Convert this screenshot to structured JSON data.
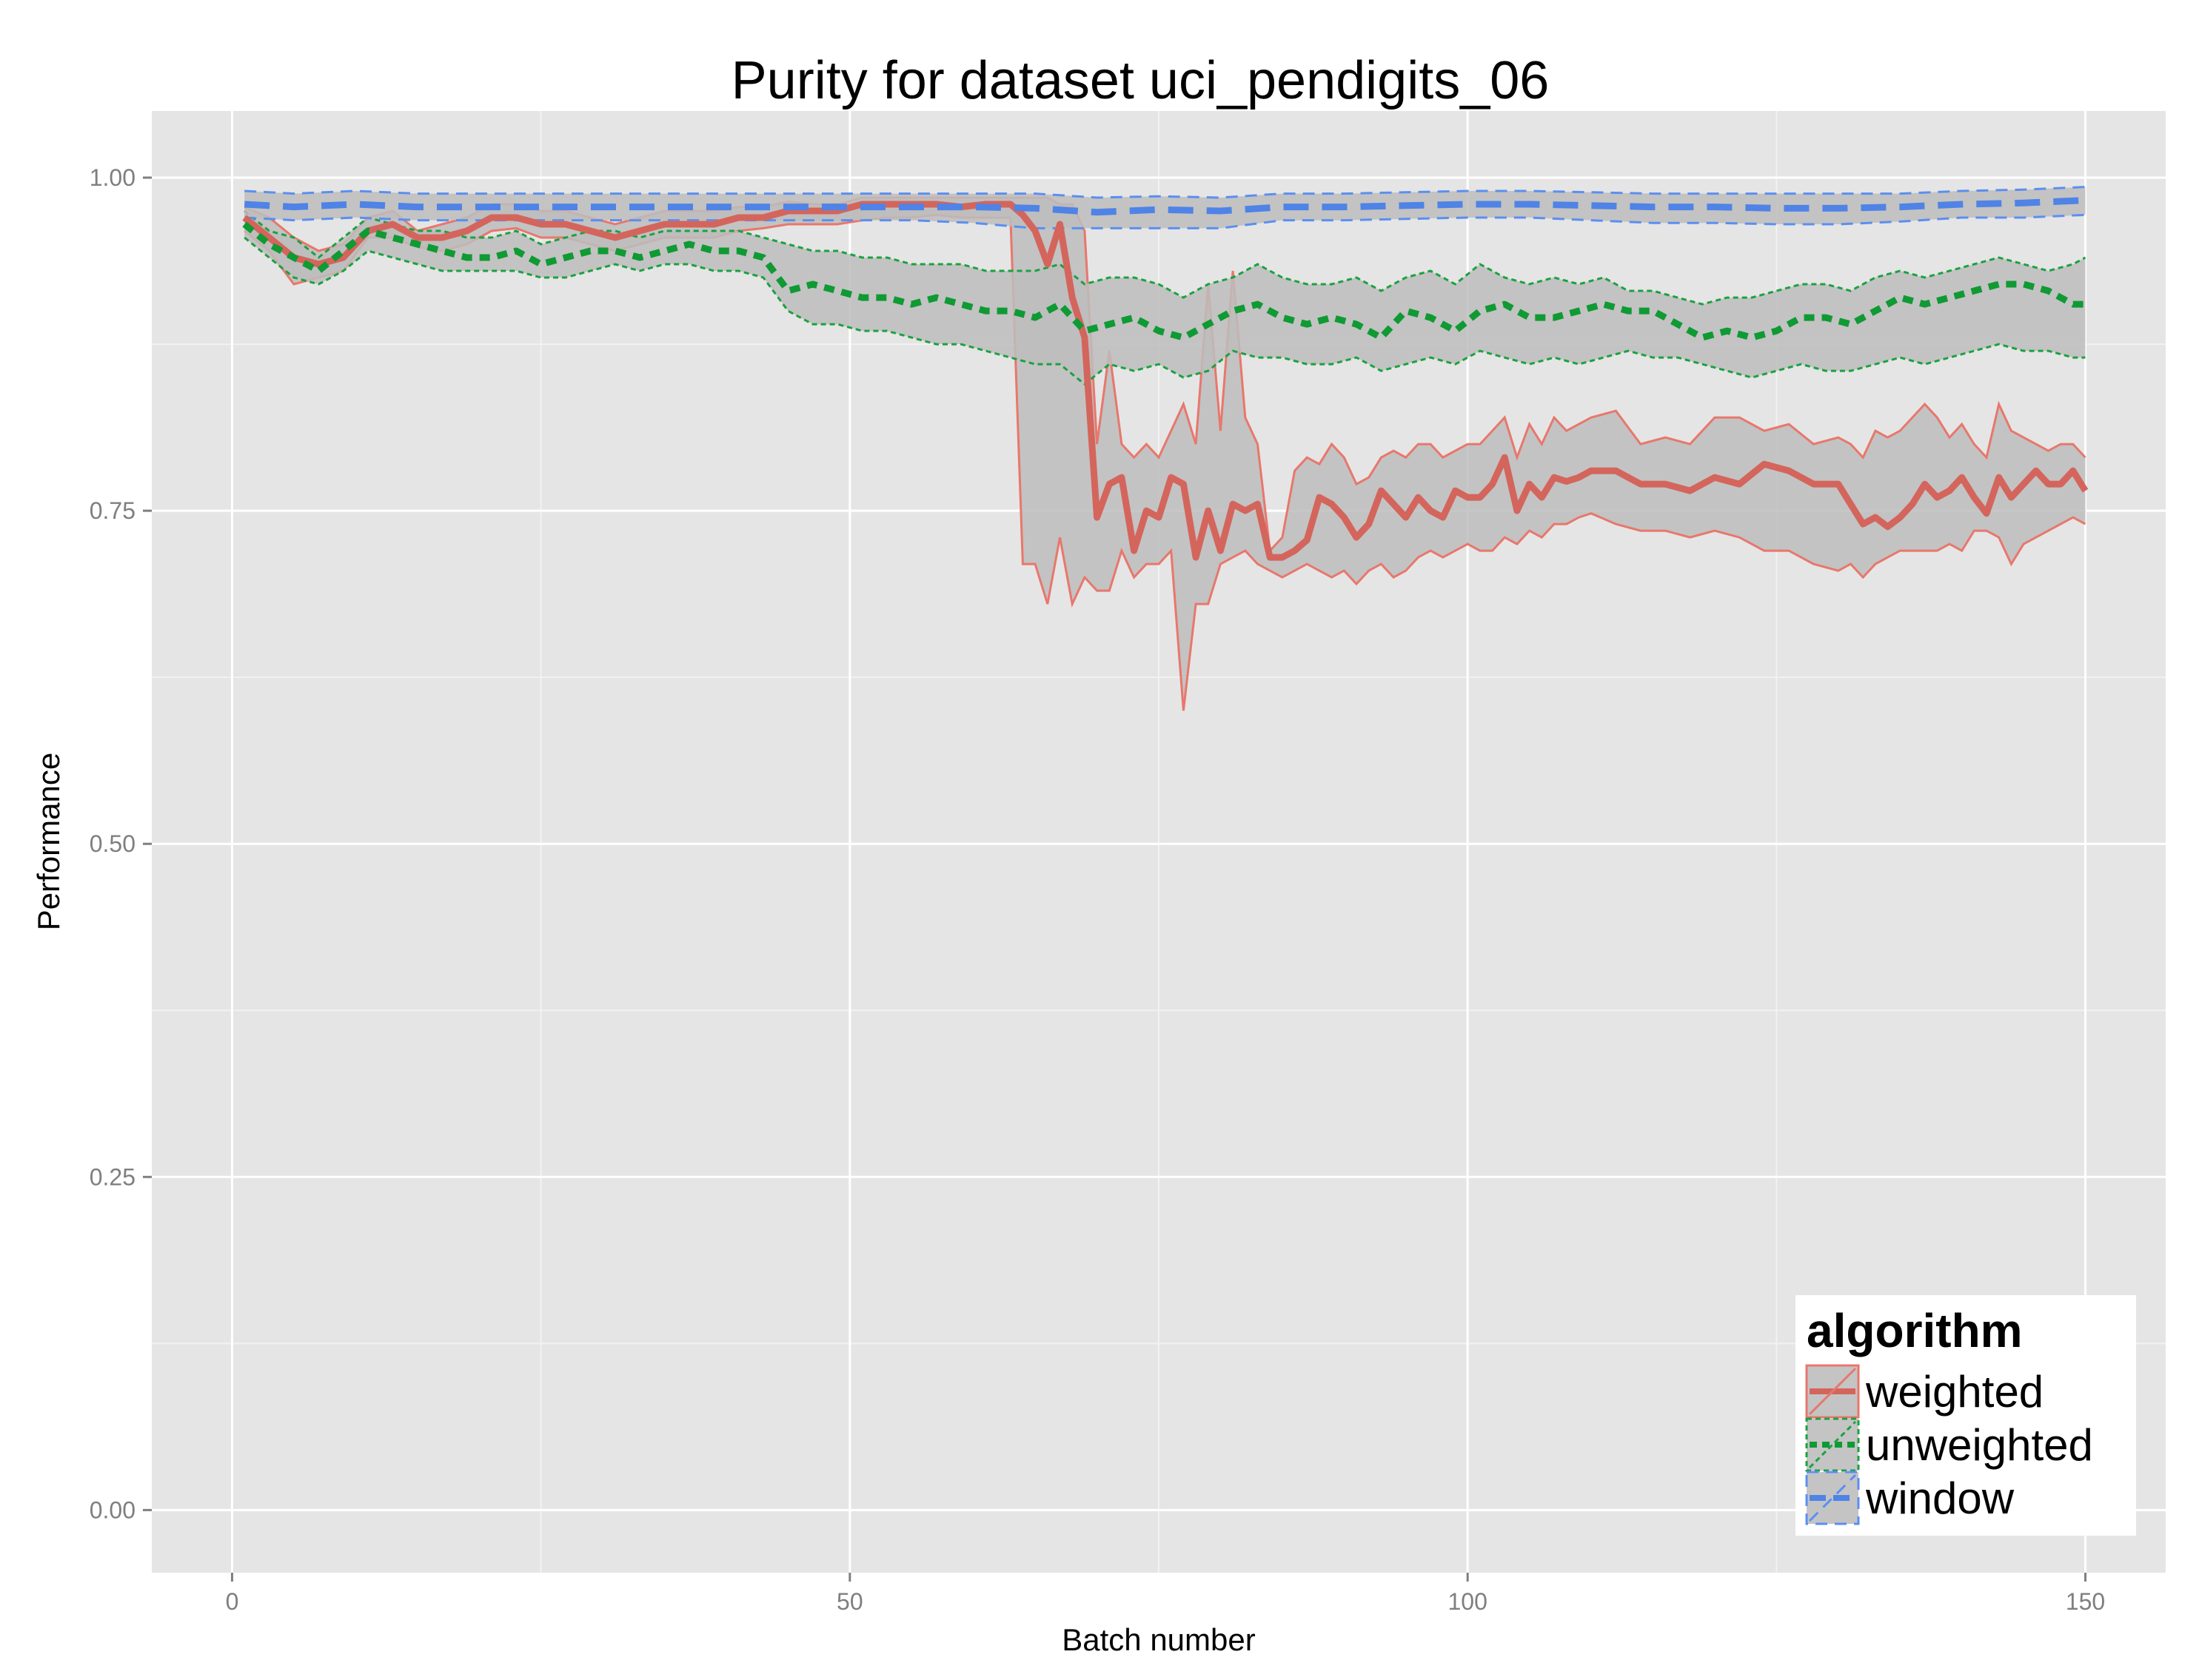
{
  "chart_data": {
    "type": "line",
    "title": "Purity for dataset uci_pendigits_06",
    "xlabel": "Batch number",
    "ylabel": "Performance",
    "xlim": [
      -6.5,
      156.5
    ],
    "ylim": [
      -0.047,
      1.05
    ],
    "x_ticks": [
      0,
      50,
      100,
      150
    ],
    "x_tick_labels": [
      "0",
      "50",
      "100",
      "150"
    ],
    "y_ticks": [
      0,
      0.25,
      0.5,
      0.75,
      1.0
    ],
    "y_tick_labels": [
      "0.00",
      "0.25",
      "0.50",
      "0.75",
      "1.00"
    ],
    "grid": true,
    "background": "#e5e5e5",
    "band_fill": "#bdbdbd",
    "legend": {
      "title": "algorithm",
      "position": "bottom-right",
      "entries": [
        "weighted",
        "unweighted",
        "window"
      ]
    },
    "series": [
      {
        "name": "weighted",
        "color": "#e8776c",
        "line_color": "#d4655c",
        "dash": "solid",
        "x": [
          1,
          3,
          5,
          7,
          9,
          11,
          13,
          15,
          17,
          19,
          21,
          23,
          25,
          27,
          29,
          31,
          33,
          35,
          37,
          39,
          41,
          43,
          45,
          47,
          49,
          51,
          53,
          55,
          57,
          59,
          61,
          63,
          64,
          65,
          66,
          67,
          68,
          69,
          70,
          71,
          72,
          73,
          74,
          75,
          76,
          77,
          78,
          79,
          80,
          81,
          82,
          83,
          84,
          85,
          86,
          87,
          88,
          89,
          90,
          91,
          92,
          93,
          94,
          95,
          96,
          97,
          98,
          99,
          100,
          101,
          102,
          103,
          104,
          105,
          106,
          107,
          108,
          109,
          110,
          112,
          114,
          116,
          118,
          120,
          122,
          124,
          126,
          128,
          130,
          131,
          132,
          133,
          134,
          135,
          136,
          137,
          138,
          139,
          140,
          141,
          142,
          143,
          144,
          145,
          146,
          147,
          148,
          149,
          150
        ],
        "y": [
          0.97,
          0.955,
          0.94,
          0.935,
          0.94,
          0.96,
          0.965,
          0.955,
          0.955,
          0.96,
          0.97,
          0.97,
          0.965,
          0.965,
          0.96,
          0.955,
          0.96,
          0.965,
          0.965,
          0.965,
          0.97,
          0.97,
          0.975,
          0.975,
          0.975,
          0.98,
          0.98,
          0.98,
          0.98,
          0.978,
          0.98,
          0.98,
          0.972,
          0.96,
          0.935,
          0.965,
          0.91,
          0.88,
          0.745,
          0.77,
          0.775,
          0.72,
          0.75,
          0.745,
          0.775,
          0.77,
          0.715,
          0.75,
          0.72,
          0.755,
          0.75,
          0.755,
          0.715,
          0.715,
          0.72,
          0.728,
          0.76,
          0.755,
          0.745,
          0.73,
          0.74,
          0.765,
          0.755,
          0.745,
          0.76,
          0.75,
          0.745,
          0.765,
          0.76,
          0.76,
          0.77,
          0.79,
          0.75,
          0.77,
          0.76,
          0.775,
          0.772,
          0.775,
          0.78,
          0.78,
          0.77,
          0.77,
          0.765,
          0.775,
          0.77,
          0.785,
          0.78,
          0.77,
          0.77,
          0.755,
          0.74,
          0.745,
          0.738,
          0.745,
          0.755,
          0.77,
          0.76,
          0.765,
          0.775,
          0.76,
          0.748,
          0.775,
          0.76,
          0.77,
          0.78,
          0.77,
          0.77,
          0.78,
          0.765
        ],
        "lower": [
          0.96,
          0.945,
          0.92,
          0.925,
          0.93,
          0.955,
          0.955,
          0.948,
          0.945,
          0.95,
          0.96,
          0.962,
          0.955,
          0.955,
          0.95,
          0.945,
          0.95,
          0.955,
          0.955,
          0.955,
          0.96,
          0.962,
          0.965,
          0.965,
          0.965,
          0.968,
          0.97,
          0.97,
          0.972,
          0.97,
          0.97,
          0.97,
          0.71,
          0.71,
          0.68,
          0.73,
          0.68,
          0.7,
          0.69,
          0.69,
          0.72,
          0.7,
          0.71,
          0.71,
          0.72,
          0.6,
          0.68,
          0.68,
          0.71,
          0.715,
          0.72,
          0.71,
          0.705,
          0.7,
          0.705,
          0.71,
          0.705,
          0.7,
          0.705,
          0.695,
          0.705,
          0.71,
          0.7,
          0.705,
          0.715,
          0.72,
          0.715,
          0.72,
          0.725,
          0.72,
          0.72,
          0.73,
          0.725,
          0.735,
          0.73,
          0.74,
          0.74,
          0.745,
          0.748,
          0.74,
          0.735,
          0.735,
          0.73,
          0.735,
          0.73,
          0.72,
          0.72,
          0.71,
          0.705,
          0.71,
          0.7,
          0.71,
          0.715,
          0.72,
          0.72,
          0.72,
          0.72,
          0.725,
          0.72,
          0.735,
          0.735,
          0.73,
          0.71,
          0.725,
          0.73,
          0.735,
          0.74,
          0.745,
          0.74
        ],
        "upper": [
          0.978,
          0.97,
          0.955,
          0.945,
          0.95,
          0.97,
          0.975,
          0.96,
          0.965,
          0.97,
          0.98,
          0.98,
          0.975,
          0.975,
          0.97,
          0.965,
          0.97,
          0.975,
          0.975,
          0.975,
          0.978,
          0.978,
          0.982,
          0.98,
          0.98,
          0.985,
          0.985,
          0.985,
          0.985,
          0.985,
          0.985,
          0.985,
          0.985,
          0.985,
          0.985,
          0.98,
          0.98,
          0.96,
          0.8,
          0.87,
          0.8,
          0.79,
          0.8,
          0.79,
          0.81,
          0.83,
          0.8,
          0.92,
          0.81,
          0.93,
          0.82,
          0.8,
          0.72,
          0.73,
          0.78,
          0.79,
          0.785,
          0.8,
          0.79,
          0.77,
          0.775,
          0.79,
          0.795,
          0.79,
          0.8,
          0.8,
          0.79,
          0.795,
          0.8,
          0.8,
          0.81,
          0.82,
          0.79,
          0.815,
          0.8,
          0.82,
          0.81,
          0.815,
          0.82,
          0.825,
          0.8,
          0.805,
          0.8,
          0.82,
          0.82,
          0.81,
          0.815,
          0.8,
          0.805,
          0.8,
          0.79,
          0.81,
          0.805,
          0.81,
          0.82,
          0.83,
          0.82,
          0.805,
          0.815,
          0.8,
          0.79,
          0.83,
          0.81,
          0.805,
          0.8,
          0.795,
          0.8,
          0.8,
          0.79
        ]
      },
      {
        "name": "unweighted",
        "color": "#1aa23f",
        "line_color": "#0f9a33",
        "dash": "dotted",
        "x": [
          1,
          3,
          5,
          7,
          9,
          11,
          13,
          15,
          17,
          19,
          21,
          23,
          25,
          27,
          29,
          31,
          33,
          35,
          37,
          39,
          41,
          43,
          45,
          47,
          49,
          51,
          53,
          55,
          57,
          59,
          61,
          63,
          65,
          67,
          69,
          71,
          73,
          75,
          77,
          79,
          81,
          83,
          85,
          87,
          89,
          91,
          93,
          95,
          97,
          99,
          101,
          103,
          105,
          107,
          109,
          111,
          113,
          115,
          117,
          119,
          121,
          123,
          125,
          127,
          129,
          131,
          133,
          135,
          137,
          139,
          141,
          143,
          145,
          147,
          149,
          150
        ],
        "y": [
          0.965,
          0.95,
          0.94,
          0.93,
          0.945,
          0.96,
          0.955,
          0.95,
          0.945,
          0.94,
          0.94,
          0.945,
          0.935,
          0.94,
          0.945,
          0.945,
          0.94,
          0.945,
          0.95,
          0.945,
          0.945,
          0.94,
          0.915,
          0.92,
          0.915,
          0.91,
          0.91,
          0.905,
          0.91,
          0.905,
          0.9,
          0.9,
          0.895,
          0.905,
          0.885,
          0.89,
          0.895,
          0.885,
          0.88,
          0.89,
          0.9,
          0.905,
          0.895,
          0.89,
          0.895,
          0.89,
          0.88,
          0.9,
          0.895,
          0.885,
          0.9,
          0.905,
          0.895,
          0.895,
          0.9,
          0.905,
          0.9,
          0.9,
          0.89,
          0.88,
          0.885,
          0.88,
          0.885,
          0.895,
          0.895,
          0.89,
          0.9,
          0.91,
          0.905,
          0.91,
          0.915,
          0.92,
          0.92,
          0.915,
          0.905,
          0.905
        ],
        "lower": [
          0.955,
          0.94,
          0.925,
          0.92,
          0.93,
          0.945,
          0.94,
          0.935,
          0.93,
          0.93,
          0.93,
          0.93,
          0.925,
          0.925,
          0.93,
          0.935,
          0.93,
          0.935,
          0.935,
          0.93,
          0.93,
          0.925,
          0.9,
          0.89,
          0.89,
          0.885,
          0.885,
          0.88,
          0.875,
          0.875,
          0.87,
          0.865,
          0.86,
          0.86,
          0.845,
          0.86,
          0.855,
          0.86,
          0.85,
          0.855,
          0.87,
          0.865,
          0.865,
          0.86,
          0.86,
          0.865,
          0.855,
          0.86,
          0.865,
          0.86,
          0.87,
          0.865,
          0.86,
          0.865,
          0.86,
          0.865,
          0.87,
          0.865,
          0.865,
          0.86,
          0.855,
          0.85,
          0.855,
          0.86,
          0.855,
          0.855,
          0.86,
          0.865,
          0.86,
          0.865,
          0.87,
          0.875,
          0.87,
          0.87,
          0.865,
          0.865
        ],
        "upper": [
          0.975,
          0.96,
          0.955,
          0.94,
          0.955,
          0.97,
          0.965,
          0.96,
          0.96,
          0.955,
          0.955,
          0.96,
          0.95,
          0.955,
          0.96,
          0.96,
          0.955,
          0.96,
          0.96,
          0.96,
          0.96,
          0.955,
          0.95,
          0.945,
          0.945,
          0.94,
          0.94,
          0.935,
          0.935,
          0.935,
          0.93,
          0.93,
          0.93,
          0.935,
          0.92,
          0.925,
          0.925,
          0.92,
          0.91,
          0.92,
          0.925,
          0.935,
          0.925,
          0.92,
          0.92,
          0.925,
          0.915,
          0.925,
          0.93,
          0.92,
          0.935,
          0.925,
          0.92,
          0.925,
          0.92,
          0.925,
          0.915,
          0.915,
          0.91,
          0.905,
          0.91,
          0.91,
          0.915,
          0.92,
          0.92,
          0.915,
          0.925,
          0.93,
          0.925,
          0.93,
          0.935,
          0.94,
          0.935,
          0.93,
          0.935,
          0.94
        ]
      },
      {
        "name": "window",
        "color": "#5b8ff0",
        "line_color": "#4f83e6",
        "dash": "dashed",
        "x": [
          1,
          5,
          10,
          15,
          20,
          25,
          30,
          35,
          40,
          45,
          50,
          55,
          60,
          65,
          70,
          75,
          80,
          85,
          90,
          95,
          100,
          105,
          110,
          115,
          120,
          125,
          130,
          135,
          140,
          145,
          150
        ],
        "y": [
          0.98,
          0.978,
          0.98,
          0.978,
          0.978,
          0.978,
          0.978,
          0.978,
          0.978,
          0.978,
          0.978,
          0.978,
          0.978,
          0.977,
          0.974,
          0.976,
          0.975,
          0.978,
          0.978,
          0.979,
          0.98,
          0.98,
          0.979,
          0.978,
          0.978,
          0.977,
          0.977,
          0.978,
          0.98,
          0.981,
          0.983
        ],
        "lower": [
          0.97,
          0.968,
          0.97,
          0.968,
          0.968,
          0.968,
          0.968,
          0.968,
          0.968,
          0.968,
          0.968,
          0.968,
          0.966,
          0.962,
          0.962,
          0.962,
          0.962,
          0.968,
          0.968,
          0.969,
          0.97,
          0.97,
          0.968,
          0.966,
          0.966,
          0.965,
          0.965,
          0.967,
          0.97,
          0.97,
          0.972
        ],
        "upper": [
          0.99,
          0.988,
          0.99,
          0.988,
          0.988,
          0.988,
          0.988,
          0.988,
          0.988,
          0.988,
          0.988,
          0.988,
          0.988,
          0.988,
          0.985,
          0.986,
          0.985,
          0.988,
          0.988,
          0.989,
          0.99,
          0.99,
          0.989,
          0.988,
          0.988,
          0.988,
          0.988,
          0.988,
          0.99,
          0.991,
          0.993
        ]
      }
    ]
  }
}
